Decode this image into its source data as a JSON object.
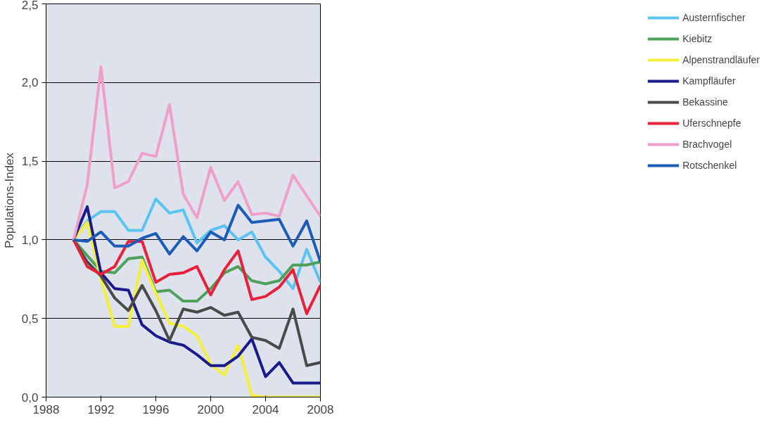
{
  "chart_data": {
    "type": "line",
    "ylabel": "Populations-Index",
    "x": [
      1990,
      1991,
      1992,
      1993,
      1994,
      1995,
      1996,
      1997,
      1998,
      1999,
      2000,
      2001,
      2002,
      2003,
      2004,
      2005,
      2006,
      2007,
      2008
    ],
    "xlim": [
      1988,
      2008
    ],
    "xticks": [
      1988,
      1992,
      1996,
      2000,
      2004,
      2008
    ],
    "ylim": [
      0,
      2.5
    ],
    "yticks": [
      {
        "value": 0,
        "label": "0,0"
      },
      {
        "value": 0.5,
        "label": "0,5"
      },
      {
        "value": 1,
        "label": "1,0"
      },
      {
        "value": 1.5,
        "label": "1,5"
      },
      {
        "value": 2,
        "label": "2,0"
      },
      {
        "value": 2.5,
        "label": "2,5"
      }
    ],
    "grid": "y",
    "legend": "right",
    "marker": "none",
    "line_style": "solid",
    "series": [
      {
        "name": "Austernfischer",
        "color": "#5bc4f0",
        "values": [
          1.0,
          1.12,
          1.18,
          1.18,
          1.06,
          1.06,
          1.26,
          1.17,
          1.19,
          0.98,
          1.06,
          1.09,
          1.0,
          1.05,
          0.89,
          0.8,
          0.69,
          0.94,
          0.73
        ]
      },
      {
        "name": "Kiebitz",
        "color": "#4ea05a",
        "values": [
          1.0,
          0.9,
          0.8,
          0.79,
          0.88,
          0.89,
          0.67,
          0.68,
          0.61,
          0.61,
          0.69,
          0.79,
          0.83,
          0.74,
          0.72,
          0.74,
          0.84,
          0.84,
          0.86
        ]
      },
      {
        "name": "Alpenstrandläufer",
        "color": "#f5ef3a",
        "values": [
          1.0,
          1.11,
          0.75,
          0.45,
          0.45,
          0.87,
          0.66,
          0.47,
          0.45,
          0.39,
          0.21,
          0.14,
          0.33,
          0.01,
          0.0,
          0.0,
          0.0,
          0.0,
          0.0
        ]
      },
      {
        "name": "Kampfläufer",
        "color": "#1a1a8c",
        "values": [
          1.0,
          1.21,
          0.79,
          0.69,
          0.68,
          0.46,
          0.39,
          0.35,
          0.33,
          0.27,
          0.2,
          0.2,
          0.26,
          0.37,
          0.13,
          0.22,
          0.09,
          0.09,
          0.09
        ]
      },
      {
        "name": "Bekassine",
        "color": "#4a4a4a",
        "values": [
          1.0,
          0.86,
          0.77,
          0.63,
          0.55,
          0.71,
          0.55,
          0.36,
          0.56,
          0.54,
          0.57,
          0.52,
          0.54,
          0.38,
          0.36,
          0.31,
          0.56,
          0.2,
          0.22
        ]
      },
      {
        "name": "Uferschnepfe",
        "color": "#e8203a",
        "values": [
          1.0,
          0.83,
          0.78,
          0.83,
          0.99,
          0.99,
          0.73,
          0.78,
          0.79,
          0.83,
          0.65,
          0.81,
          0.93,
          0.62,
          0.64,
          0.7,
          0.81,
          0.53,
          0.71
        ]
      },
      {
        "name": "Brachvogel",
        "color": "#f0a0c8",
        "values": [
          1.0,
          1.35,
          2.1,
          1.33,
          1.37,
          1.55,
          1.53,
          1.86,
          1.29,
          1.14,
          1.46,
          1.25,
          1.37,
          1.16,
          1.17,
          1.15,
          1.41,
          1.28,
          1.15
        ]
      },
      {
        "name": "Rotschenkel",
        "color": "#1c5cb8",
        "values": [
          1.0,
          0.99,
          1.05,
          0.96,
          0.96,
          1.01,
          1.04,
          0.91,
          1.02,
          0.93,
          1.05,
          1.0,
          1.22,
          1.11,
          1.12,
          1.13,
          0.96,
          1.12,
          0.86
        ]
      }
    ]
  }
}
